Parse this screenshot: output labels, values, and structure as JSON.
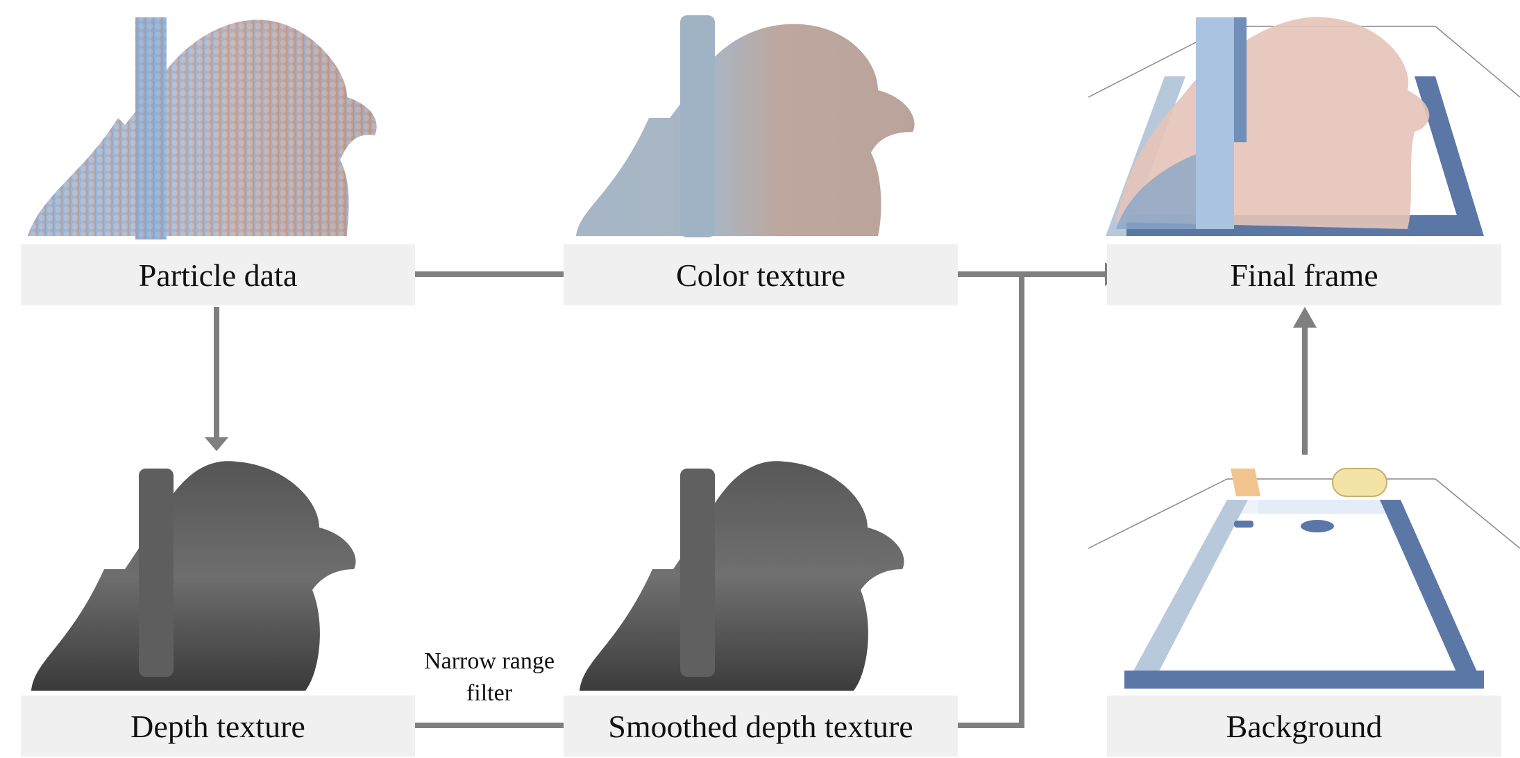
{
  "nodes": {
    "particle_data": "Particle data",
    "color_texture": "Color texture",
    "final_frame": "Final frame",
    "depth_texture": "Depth texture",
    "smoothed_depth_texture": "Smoothed depth texture",
    "background": "Background"
  },
  "edge_label": {
    "line1": "Narrow range",
    "line2": "filter"
  },
  "colors": {
    "arrow": "#7f7f7f",
    "label_bg": "#f0f0f0",
    "fluid_blue": "#8fb4df",
    "fluid_pink": "#c9a79c",
    "depth_gray": "#555555",
    "tank_blue": "#5b77a6"
  }
}
